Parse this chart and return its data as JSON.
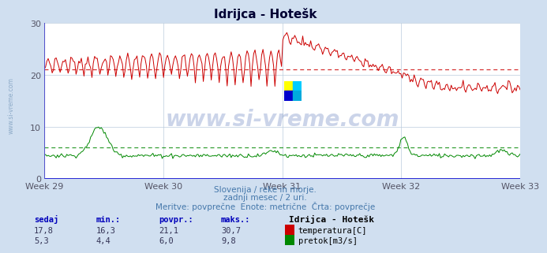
{
  "title_text": "Idrijca - Hotešk",
  "bg_color": "#d0dff0",
  "plot_bg_color": "#ffffff",
  "grid_color": "#bbccdd",
  "temp_color": "#cc0000",
  "flow_color": "#008800",
  "avg_temp": 21.1,
  "avg_flow": 6.0,
  "ylim_min": 0,
  "ylim_max": 30,
  "yticks": [
    0,
    10,
    20,
    30
  ],
  "week_labels": [
    "Week 29",
    "Week 30",
    "Week 31",
    "Week 32",
    "Week 33"
  ],
  "subtitle1": "Slovenija / reke in morje.",
  "subtitle2": "zadnji mesec / 2 uri.",
  "subtitle3": "Meritve: povprečne  Enote: metrične  Črta: povprečje",
  "label_station": "Idrijca - Hotešk",
  "label_temp": "temperatura[C]",
  "label_flow": "pretok[m3/s]",
  "watermark": "www.si-vreme.com",
  "watermark_left": "www.si-vreme.com",
  "n_points": 360,
  "sedaj_t": "17,8",
  "min_t": "16,3",
  "povpr_t": "21,1",
  "maks_t": "30,7",
  "sedaj_f": "5,3",
  "min_f": "4,4",
  "povpr_f": "6,0",
  "maks_f": "9,8"
}
